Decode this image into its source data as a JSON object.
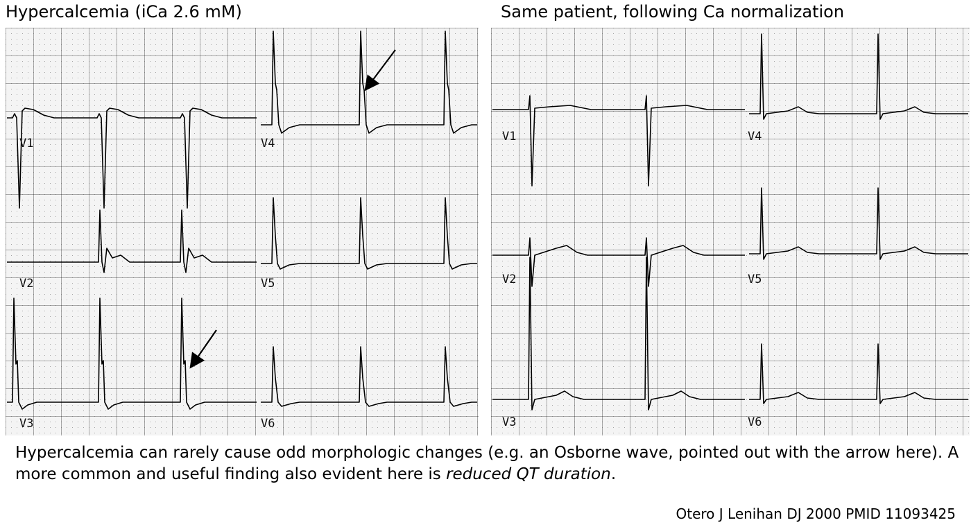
{
  "left_panel": {
    "title": "Hypercalcemia (iCa 2.6 mM)",
    "leads": [
      "V1",
      "V2",
      "V3",
      "V4",
      "V5",
      "V6"
    ],
    "arrows": 2
  },
  "right_panel": {
    "title": "Same patient, following Ca normalization",
    "leads": [
      "V1",
      "V2",
      "V3",
      "V4",
      "V5",
      "V6"
    ]
  },
  "caption": {
    "text_before": "Hypercalcemia can rarely cause odd morphologic changes (e.g. an Osborne wave, pointed out with the arrow here).  A more common and useful finding also evident here is ",
    "emphasis": "reduced QT duration",
    "text_after": "."
  },
  "citation": "Otero J Lenihan DJ 2000 PMID 11093425",
  "colors": {
    "grid_major": "#555555",
    "grid_minor": "#9a9a9a",
    "paper": "#f4f4f4",
    "trace": "#000000"
  }
}
